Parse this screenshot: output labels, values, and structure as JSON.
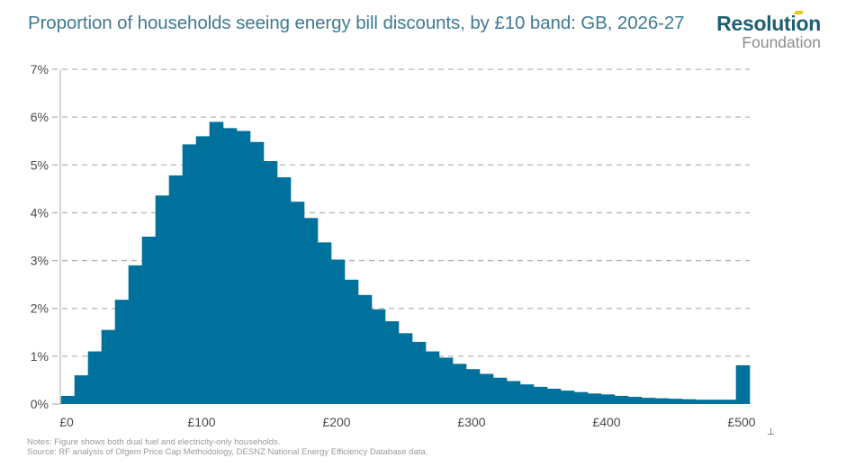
{
  "header": {
    "title": "Proportion of households seeing energy bill discounts, by £10 band: GB, 2026-27"
  },
  "logo": {
    "line1": "Resolution",
    "line2": "Foundation",
    "accent_color": "#f2c417"
  },
  "footer": {
    "notes": "Notes: Figure shows both dual fuel and electricity-only households.",
    "source": "Source: RF analysis of Ofgem Price Cap Methodology, DESNZ National Energy Efficiency Database data."
  },
  "colors": {
    "bar": "#00709c",
    "title": "#3f7a93",
    "grid": "#b5b5b5"
  },
  "chart_data": {
    "type": "bar",
    "title": "Proportion of households seeing energy bill discounts, by £10 band: GB, 2026-27",
    "xlabel": "",
    "ylabel": "",
    "ylim": [
      0,
      7
    ],
    "yticks": [
      0,
      1,
      2,
      3,
      4,
      5,
      6,
      7
    ],
    "ytick_labels": [
      "0%",
      "1%",
      "2%",
      "3%",
      "4%",
      "5%",
      "6%",
      "7%"
    ],
    "xticks": [
      0,
      100,
      200,
      300,
      400,
      500
    ],
    "xtick_labels": [
      "£0",
      "£100",
      "£200",
      "£300",
      "£400",
      "£500"
    ],
    "band_width": 10,
    "grid": "horizontal dashed",
    "legend": "none",
    "categories": [
      "£0",
      "£10",
      "£20",
      "£30",
      "£40",
      "£50",
      "£60",
      "£70",
      "£80",
      "£90",
      "£100",
      "£110",
      "£120",
      "£130",
      "£140",
      "£150",
      "£160",
      "£170",
      "£180",
      "£190",
      "£200",
      "£210",
      "£220",
      "£230",
      "£240",
      "£250",
      "£260",
      "£270",
      "£280",
      "£290",
      "£300",
      "£310",
      "£320",
      "£330",
      "£340",
      "£350",
      "£360",
      "£370",
      "£380",
      "£390",
      "£400",
      "£410",
      "£420",
      "£430",
      "£440",
      "£450",
      "£460",
      "£470",
      "£480",
      "£490",
      "£500+"
    ],
    "values": [
      0.17,
      0.6,
      1.1,
      1.55,
      2.18,
      2.9,
      3.5,
      4.36,
      4.78,
      5.43,
      5.6,
      5.9,
      5.77,
      5.71,
      5.48,
      5.08,
      4.74,
      4.23,
      3.89,
      3.38,
      3.02,
      2.6,
      2.28,
      1.98,
      1.73,
      1.48,
      1.3,
      1.1,
      0.97,
      0.84,
      0.73,
      0.63,
      0.55,
      0.48,
      0.41,
      0.36,
      0.32,
      0.28,
      0.25,
      0.22,
      0.2,
      0.17,
      0.15,
      0.13,
      0.12,
      0.11,
      0.1,
      0.09,
      0.09,
      0.09,
      0.81
    ]
  }
}
